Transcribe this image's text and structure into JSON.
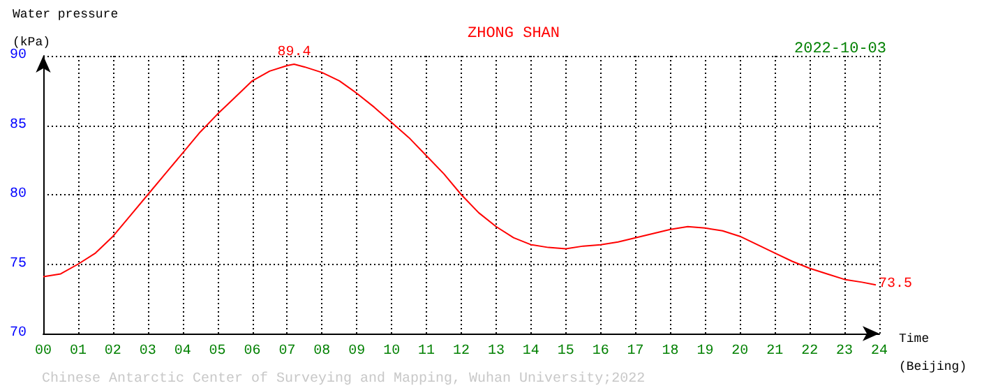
{
  "chart_data": {
    "type": "line",
    "title": "ZHONG SHAN",
    "subtitle": "2022-10-03",
    "xlabel": "Time\n(Beijing)",
    "ylabel": "Water pressure\n(kPa)",
    "annotations": [
      "Chinese Antarctic Center of Surveying and Mapping, Wuhan University;2022"
    ],
    "x": [
      0,
      0.5,
      1,
      1.5,
      2,
      2.5,
      3,
      3.5,
      4,
      4.5,
      5,
      5.5,
      6,
      6.5,
      7,
      7.2,
      7.5,
      8,
      8.5,
      9,
      9.5,
      10,
      10.5,
      11,
      11.5,
      12,
      12.5,
      13,
      13.5,
      14,
      14.5,
      15,
      15.5,
      16,
      16.5,
      17,
      17.5,
      18,
      18.5,
      19,
      19.5,
      20,
      20.5,
      21,
      21.5,
      22,
      22.5,
      23,
      23.5,
      23.9
    ],
    "series": [
      {
        "color": "#ff0000",
        "values": [
          74.1,
          74.3,
          75.0,
          75.8,
          77.0,
          78.5,
          80.0,
          81.5,
          83.0,
          84.5,
          85.8,
          87.0,
          88.2,
          88.9,
          89.3,
          89.4,
          89.2,
          88.8,
          88.2,
          87.3,
          86.3,
          85.2,
          84.1,
          82.8,
          81.5,
          80.0,
          78.7,
          77.7,
          76.9,
          76.4,
          76.2,
          76.1,
          76.3,
          76.4,
          76.6,
          76.9,
          77.2,
          77.5,
          77.7,
          77.6,
          77.4,
          77.0,
          76.4,
          75.8,
          75.2,
          74.7,
          74.3,
          73.9,
          73.7,
          73.5
        ],
        "value_labels": [
          null,
          null,
          null,
          null,
          null,
          null,
          null,
          null,
          null,
          null,
          null,
          null,
          null,
          null,
          null,
          "89.4",
          null,
          null,
          null,
          null,
          null,
          null,
          null,
          null,
          null,
          null,
          null,
          null,
          null,
          null,
          null,
          null,
          null,
          null,
          null,
          null,
          null,
          null,
          null,
          null,
          null,
          null,
          null,
          null,
          null,
          null,
          null,
          null,
          null,
          "73.5"
        ]
      }
    ],
    "xlim": [
      0,
      24
    ],
    "xticks": [
      {
        "value": 0,
        "label": "00"
      },
      {
        "value": 1,
        "label": "01"
      },
      {
        "value": 2,
        "label": "02"
      },
      {
        "value": 3,
        "label": "03"
      },
      {
        "value": 4,
        "label": "04"
      },
      {
        "value": 5,
        "label": "05"
      },
      {
        "value": 6,
        "label": "06"
      },
      {
        "value": 7,
        "label": "07"
      },
      {
        "value": 8,
        "label": "08"
      },
      {
        "value": 9,
        "label": "09"
      },
      10,
      11,
      12,
      13,
      14,
      15,
      16,
      17,
      18,
      19,
      20,
      21,
      22,
      23,
      24
    ],
    "ylim": [
      70,
      90
    ],
    "yticks": [
      70,
      75,
      80,
      85,
      90
    ],
    "grid": true,
    "marker": "none",
    "line_style": "solid"
  }
}
